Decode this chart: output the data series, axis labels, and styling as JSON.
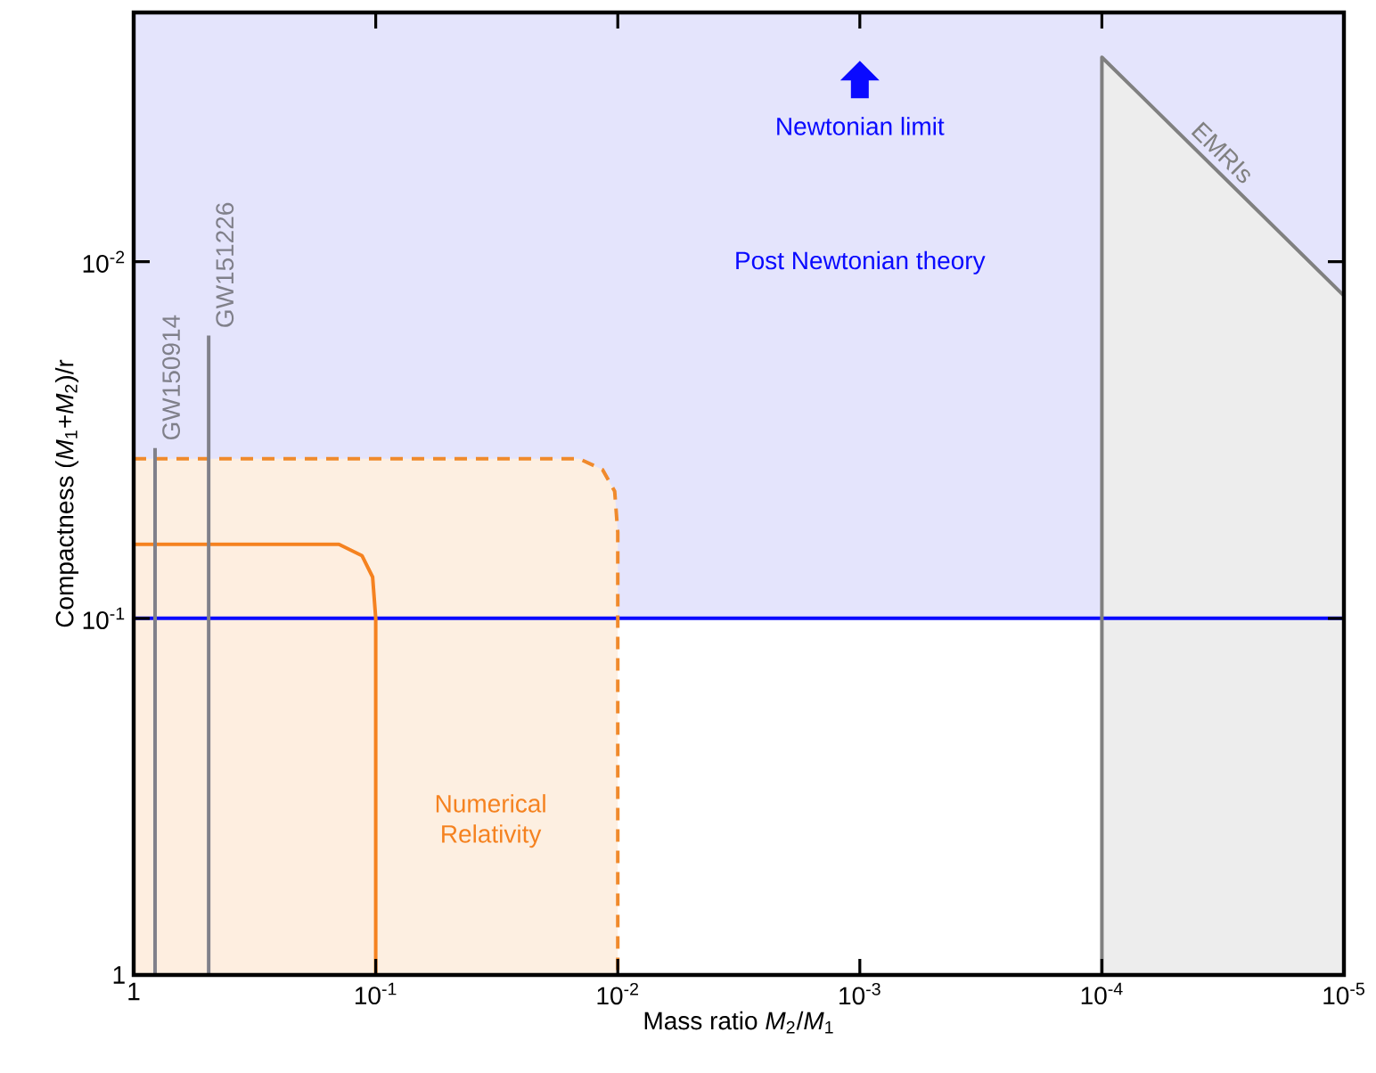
{
  "chart_data": {
    "type": "line",
    "xlabel": "Mass ratio *M*$_{2}$/*M*$_{1}$",
    "ylabel": "Compactness (*M*$_{1}$+*M*$_{2}$)/r",
    "xlim": [
      1,
      1e-05
    ],
    "ylim": [
      1,
      0.002
    ],
    "log": "xy",
    "xticks": [
      1,
      {
        "value": 0.1,
        "label": "10$^{-1}$"
      },
      {
        "value": 0.01,
        "label": "10$^{-2}$"
      },
      {
        "value": 0.001,
        "label": "10$^{-3}$"
      },
      {
        "value": 0.0001,
        "label": "10$^{-4}$"
      },
      {
        "value": 1e-05,
        "label": "10$^{-5}$"
      }
    ],
    "yticks": [
      1,
      {
        "value": 0.1,
        "label": "10$^{-1}$"
      },
      {
        "value": 0.01,
        "label": "10$^{-2}$"
      }
    ],
    "grid": false,
    "marker": "none",
    "bands": [
      {
        "axis": "y",
        "from": 0.1,
        "to": 0.002,
        "label": "Post Newtonian theory",
        "color": "#e4e4fc"
      }
    ],
    "ref_lines": [
      {
        "axis": "y",
        "value": 0.1,
        "color": "#0a0aff"
      }
    ],
    "annotations": [
      "Newtonian limit"
    ],
    "series": [
      {
        "type": "area",
        "color": "#f08a2c",
        "line_style": "dashed",
        "x": [
          1,
          0.0144,
          0.01156,
          0.0103,
          0.01,
          0.01,
          1
        ],
        "values": [
          0.0357,
          0.0357,
          0.0383,
          0.044,
          0.0574,
          1,
          1
        ]
      },
      {
        "type": "area",
        "name": "Numerical Relativity",
        "color": "#f58220",
        "line_style": "solid",
        "x": [
          1,
          0.142,
          0.114,
          0.103,
          0.1,
          0.1,
          1
        ],
        "values": [
          0.062,
          0.062,
          0.0667,
          0.0766,
          0.1,
          1,
          1
        ]
      },
      {
        "type": "line",
        "name": "GW150914",
        "color": "#80808a",
        "line_style": "solid",
        "x": [
          0.816,
          0.816
        ],
        "values": [
          1,
          0.0333
        ]
      },
      {
        "type": "line",
        "name": "GW151226",
        "color": "#80808a",
        "line_style": "solid",
        "x": [
          0.49,
          0.49
        ],
        "values": [
          1,
          0.0161
        ]
      },
      {
        "type": "area",
        "name": "EMRIs",
        "color": "#808080",
        "line_style": "solid",
        "x": [
          0.0001,
          0.0001,
          1e-05,
          1e-05
        ],
        "values": [
          1,
          0.00267,
          0.01245,
          1
        ]
      }
    ]
  }
}
